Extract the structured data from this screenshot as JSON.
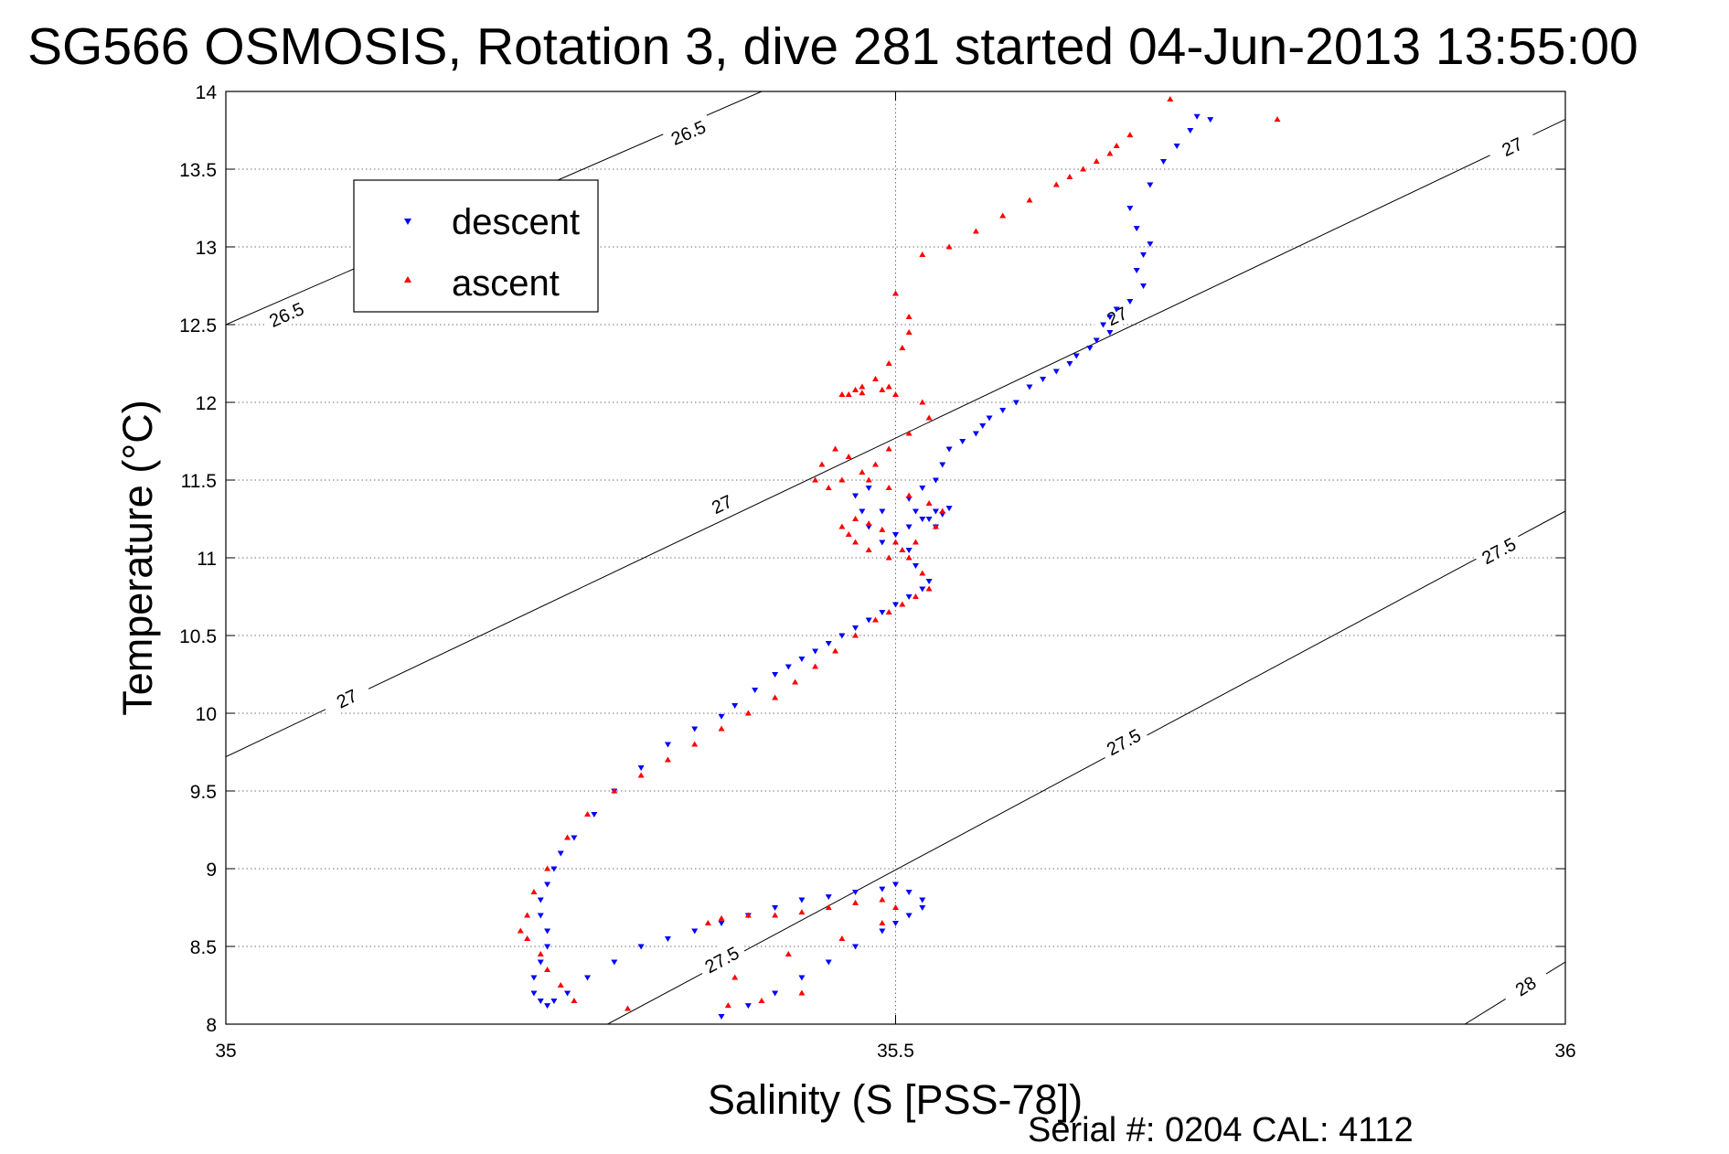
{
  "chart_data": {
    "type": "scatter",
    "title": "SG566 OSMOSIS, Rotation 3, dive 281 started 04-Jun-2013 13:55:00",
    "xlabel": "Salinity (S [PSS-78])",
    "ylabel": "Temperature (°C)",
    "xlim": [
      35,
      36
    ],
    "ylim": [
      8,
      14
    ],
    "xticks": [
      "35",
      "35.5",
      "36"
    ],
    "yticks": [
      "8",
      "8.5",
      "9",
      "9.5",
      "10",
      "10.5",
      "11",
      "11.5",
      "12",
      "12.5",
      "13",
      "13.5",
      "14"
    ],
    "grid": true,
    "legend_position": "upper-left",
    "footer": "Serial #: 0204  CAL: 4112",
    "isopycnals": [
      {
        "label": "26.5",
        "points": [
          [
            35.0,
            12.5
          ],
          [
            35.4,
            14.0
          ]
        ],
        "label_points": [
          [
            35.045,
            12.57
          ],
          [
            35.345,
            13.74
          ]
        ]
      },
      {
        "label": "27",
        "points": [
          [
            35.0,
            9.72
          ],
          [
            36.0,
            13.82
          ]
        ],
        "label_points": [
          [
            35.09,
            10.1
          ],
          [
            35.37,
            11.35
          ],
          [
            35.665,
            12.56
          ],
          [
            35.96,
            13.65
          ]
        ]
      },
      {
        "label": "27.5",
        "points": [
          [
            35.285,
            8.0
          ],
          [
            36.0,
            11.3
          ]
        ],
        "label_points": [
          [
            35.37,
            8.42
          ],
          [
            35.67,
            9.82
          ],
          [
            35.95,
            11.05
          ]
        ]
      },
      {
        "label": "28",
        "points": [
          [
            35.925,
            8.0
          ],
          [
            36.0,
            8.4
          ]
        ],
        "label_points": [
          [
            35.97,
            8.25
          ]
        ]
      }
    ],
    "series": [
      {
        "name": "descent",
        "color": "#0000ff",
        "marker": "triangle-down",
        "x": [
          35.735,
          35.725,
          35.72,
          35.71,
          35.7,
          35.69,
          35.675,
          35.68,
          35.69,
          35.685,
          35.68,
          35.685,
          35.675,
          35.665,
          35.66,
          35.655,
          35.66,
          35.65,
          35.645,
          35.635,
          35.63,
          35.62,
          35.61,
          35.6,
          35.59,
          35.58,
          35.57,
          35.565,
          35.56,
          35.55,
          35.54,
          35.535,
          35.53,
          35.52,
          35.51,
          35.515,
          35.525,
          35.53,
          35.535,
          35.54,
          35.53,
          35.52,
          35.51,
          35.5,
          35.49,
          35.48,
          35.475,
          35.47,
          35.48,
          35.49,
          35.5,
          35.51,
          35.515,
          35.525,
          35.52,
          35.51,
          35.5,
          35.49,
          35.48,
          35.47,
          35.46,
          35.45,
          35.44,
          35.43,
          35.42,
          35.41,
          35.395,
          35.38,
          35.37,
          35.35,
          35.33,
          35.31,
          35.29,
          35.275,
          35.26,
          35.25,
          35.245,
          35.24,
          35.235,
          35.235,
          35.24,
          35.24,
          35.235,
          35.23,
          35.23,
          35.235,
          35.24,
          35.245,
          35.255,
          35.27,
          35.29,
          35.31,
          35.33,
          35.35,
          35.37,
          35.39,
          35.41,
          35.43,
          35.45,
          35.47,
          35.49,
          35.5,
          35.51,
          35.52,
          35.52,
          35.51,
          35.5,
          35.49,
          35.47,
          35.45,
          35.43,
          35.41,
          35.39,
          35.37
        ],
        "y": [
          13.82,
          13.84,
          13.75,
          13.65,
          13.55,
          13.4,
          13.25,
          13.12,
          13.02,
          12.95,
          12.85,
          12.75,
          12.65,
          12.6,
          12.55,
          12.5,
          12.45,
          12.4,
          12.35,
          12.3,
          12.25,
          12.2,
          12.15,
          12.1,
          12.0,
          11.95,
          11.9,
          11.85,
          11.8,
          11.75,
          11.7,
          11.6,
          11.5,
          11.45,
          11.38,
          11.3,
          11.25,
          11.2,
          11.28,
          11.32,
          11.3,
          11.25,
          11.2,
          11.15,
          11.1,
          11.2,
          11.3,
          11.4,
          11.45,
          11.3,
          11.15,
          11.05,
          10.95,
          10.85,
          10.8,
          10.75,
          10.7,
          10.65,
          10.6,
          10.55,
          10.5,
          10.45,
          10.4,
          10.35,
          10.3,
          10.25,
          10.15,
          10.05,
          9.98,
          9.9,
          9.8,
          9.65,
          9.5,
          9.35,
          9.2,
          9.1,
          9.0,
          8.9,
          8.8,
          8.7,
          8.6,
          8.5,
          8.4,
          8.3,
          8.2,
          8.15,
          8.12,
          8.15,
          8.2,
          8.3,
          8.4,
          8.5,
          8.55,
          8.6,
          8.65,
          8.7,
          8.75,
          8.8,
          8.82,
          8.85,
          8.87,
          8.9,
          8.85,
          8.8,
          8.75,
          8.7,
          8.65,
          8.6,
          8.5,
          8.4,
          8.3,
          8.2,
          8.12,
          8.05
        ]
      },
      {
        "name": "ascent",
        "color": "#ff0000",
        "marker": "triangle-up",
        "x": [
          35.785,
          35.705,
          35.675,
          35.665,
          35.66,
          35.65,
          35.64,
          35.63,
          35.62,
          35.6,
          35.58,
          35.56,
          35.54,
          35.52,
          35.5,
          35.51,
          35.51,
          35.505,
          35.495,
          35.485,
          35.475,
          35.47,
          35.465,
          35.46,
          35.475,
          35.49,
          35.495,
          35.5,
          35.52,
          35.525,
          35.51,
          35.495,
          35.485,
          35.475,
          35.46,
          35.45,
          35.44,
          35.445,
          35.455,
          35.465,
          35.48,
          35.495,
          35.51,
          35.525,
          35.535,
          35.53,
          35.515,
          35.505,
          35.495,
          35.48,
          35.47,
          35.465,
          35.46,
          35.47,
          35.48,
          35.49,
          35.5,
          35.51,
          35.52,
          35.525,
          35.515,
          35.505,
          35.495,
          35.485,
          35.47,
          35.455,
          35.44,
          35.425,
          35.41,
          35.39,
          35.37,
          35.35,
          35.33,
          35.31,
          35.29,
          35.27,
          35.255,
          35.24,
          35.23,
          35.225,
          35.22,
          35.225,
          35.235,
          35.24,
          35.25,
          35.26,
          35.3,
          35.38,
          35.42,
          35.46,
          35.49,
          35.5,
          35.49,
          35.47,
          35.45,
          35.43,
          35.41,
          35.39,
          35.37,
          35.36,
          35.375,
          35.4,
          35.43
        ],
        "y": [
          13.82,
          13.95,
          13.72,
          13.65,
          13.6,
          13.55,
          13.5,
          13.45,
          13.4,
          13.3,
          13.2,
          13.1,
          13.0,
          12.95,
          12.7,
          12.55,
          12.45,
          12.35,
          12.25,
          12.15,
          12.1,
          12.08,
          12.05,
          12.05,
          12.06,
          12.08,
          12.1,
          12.05,
          12.0,
          11.9,
          11.8,
          11.7,
          11.6,
          11.55,
          11.5,
          11.45,
          11.5,
          11.6,
          11.7,
          11.65,
          11.5,
          11.45,
          11.4,
          11.35,
          11.3,
          11.2,
          11.1,
          11.05,
          11.0,
          11.05,
          11.1,
          11.15,
          11.2,
          11.25,
          11.22,
          11.18,
          11.1,
          11.0,
          10.9,
          10.8,
          10.75,
          10.7,
          10.65,
          10.6,
          10.5,
          10.4,
          10.3,
          10.2,
          10.1,
          10.0,
          9.9,
          9.8,
          9.7,
          9.6,
          9.5,
          9.35,
          9.2,
          9.0,
          8.85,
          8.7,
          8.6,
          8.55,
          8.45,
          8.35,
          8.25,
          8.15,
          8.1,
          8.3,
          8.45,
          8.55,
          8.65,
          8.75,
          8.8,
          8.78,
          8.75,
          8.72,
          8.7,
          8.7,
          8.68,
          8.65,
          8.12,
          8.15,
          8.2
        ]
      }
    ]
  }
}
